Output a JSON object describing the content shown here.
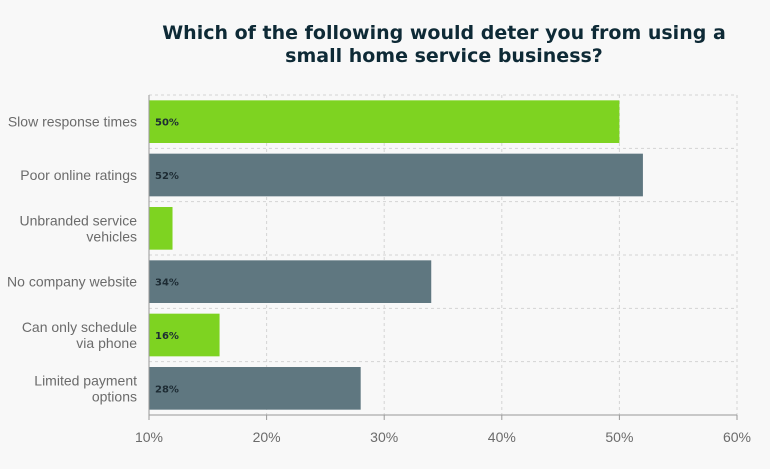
{
  "chart_data": {
    "type": "bar",
    "orientation": "horizontal",
    "title_lines": [
      "Which of the following would deter you from using a",
      "small home service business?"
    ],
    "categories": [
      [
        "Slow response times"
      ],
      [
        "Poor online ratings"
      ],
      [
        "Unbranded service",
        "vehicles"
      ],
      [
        "No company website"
      ],
      [
        "Can only schedule",
        "via phone"
      ],
      [
        "Limited payment",
        "options"
      ]
    ],
    "values": [
      50,
      52,
      12,
      34,
      16,
      28
    ],
    "data_labels": [
      "50%",
      "52%",
      "",
      "34%",
      "16%",
      "28%"
    ],
    "x_ticks": [
      "10%",
      "20%",
      "30%",
      "40%",
      "50%",
      "60%"
    ],
    "xlim": [
      10,
      60
    ],
    "grid": true,
    "colors": [
      "#7ed321",
      "#5f7780",
      "#7ed321",
      "#5f7780",
      "#7ed321",
      "#5f7780"
    ],
    "grid_color": "#d4d4d4",
    "axis_color": "#999999"
  }
}
